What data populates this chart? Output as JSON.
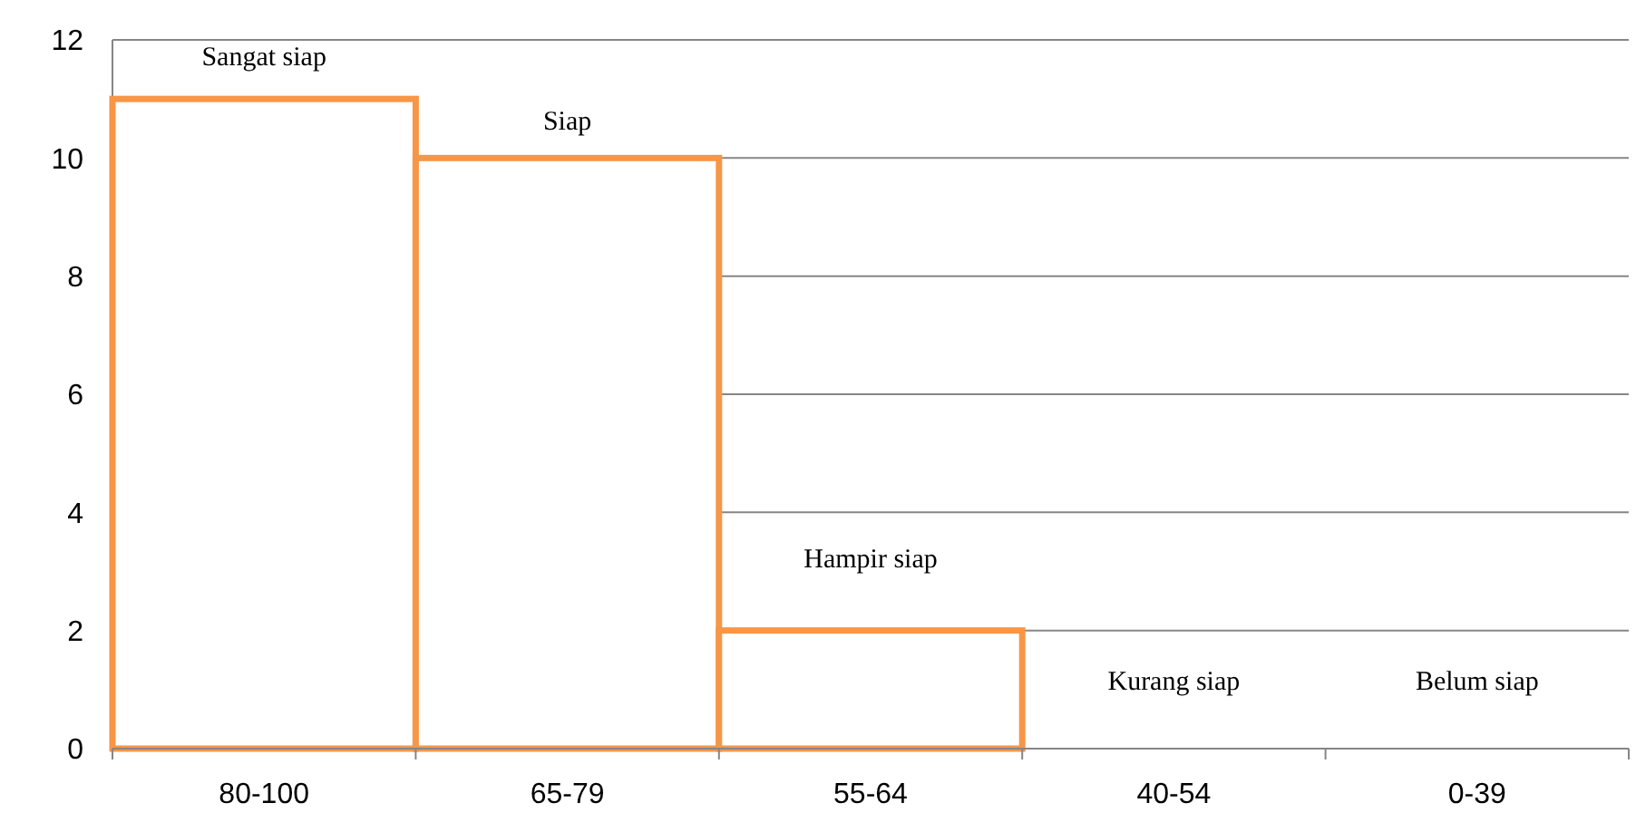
{
  "chart_data": {
    "type": "bar",
    "categories": [
      "80-100",
      "65-79",
      "55-64",
      "40-54",
      "0-39"
    ],
    "values": [
      11,
      10,
      2,
      0,
      0
    ],
    "color": "#f79646",
    "ylim": [
      0,
      12
    ],
    "yticks": [
      0,
      2,
      4,
      6,
      8,
      10,
      12
    ],
    "grid": "y",
    "annotations": [
      "Sangat siap",
      "Siap",
      "Hampir siap",
      "Kurang siap",
      "Belum siap"
    ]
  }
}
